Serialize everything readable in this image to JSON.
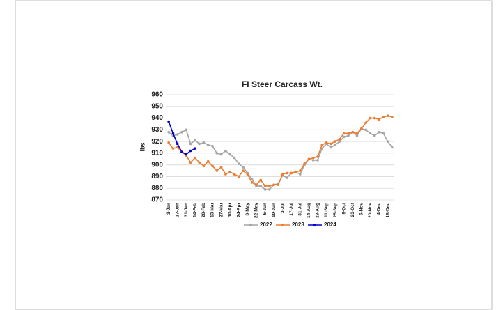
{
  "chart_data": {
    "type": "line",
    "title": "FI Steer Carcass Wt.",
    "y_label": "lbs",
    "categories": [
      "3-Jan",
      null,
      "17-Jan",
      null,
      "31-Jan",
      null,
      "14-Feb",
      null,
      "28-Feb",
      null,
      "13-Mar",
      null,
      "27-Mar",
      null,
      "10-Apr",
      null,
      "24-Apr",
      null,
      "8-May",
      null,
      "22-May",
      null,
      "5-Jun",
      null,
      "19-Jun",
      null,
      "3-Jul",
      null,
      "17-Jul",
      null,
      "31-Jul",
      null,
      "14-Aug",
      null,
      "28-Aug",
      null,
      "11-Sep",
      null,
      "25-Sep",
      null,
      "9-Oct",
      null,
      "23-Oct",
      null,
      "6-Nov",
      null,
      "20-Nov",
      null,
      "4-Dec",
      null,
      "18-Dec",
      null
    ],
    "series": [
      {
        "name": "2022",
        "color": "#a5a5a5",
        "values": [
          928,
          925,
          926,
          928,
          930,
          918,
          921,
          918,
          919,
          917,
          916,
          910,
          909,
          912,
          909,
          906,
          901,
          898,
          893,
          888,
          882,
          882,
          879,
          879,
          883,
          884,
          891,
          889,
          893,
          894,
          892,
          900,
          905,
          904,
          904,
          914,
          918,
          915,
          917,
          920,
          924,
          925,
          928,
          925,
          931,
          930,
          927,
          925,
          928,
          927,
          920,
          915
        ]
      },
      {
        "name": "2023",
        "color": "#ed7d31",
        "values": [
          919,
          914,
          915,
          911,
          908,
          902,
          906,
          902,
          899,
          903,
          899,
          895,
          898,
          892,
          894,
          892,
          890,
          895,
          892,
          885,
          883,
          887,
          882,
          882,
          883,
          883,
          892,
          893,
          893,
          894,
          895,
          901,
          905,
          906,
          907,
          917,
          919,
          918,
          920,
          922,
          927,
          927,
          928,
          927,
          931,
          936,
          940,
          940,
          939,
          941,
          942,
          941
        ]
      },
      {
        "name": "2024",
        "color": "#0000cc",
        "values": [
          937,
          927,
          918,
          911,
          909,
          912,
          914,
          null,
          null,
          null,
          null,
          null,
          null,
          null,
          null,
          null,
          null,
          null,
          null,
          null,
          null,
          null,
          null,
          null,
          null,
          null,
          null,
          null,
          null,
          null,
          null,
          null,
          null,
          null,
          null,
          null,
          null,
          null,
          null,
          null,
          null,
          null,
          null,
          null,
          null,
          null,
          null,
          null,
          null,
          null,
          null,
          null
        ]
      }
    ],
    "ylim": [
      870,
      960
    ],
    "yticks": [
      870,
      880,
      890,
      900,
      910,
      920,
      930,
      940,
      950,
      960
    ],
    "grid": true,
    "legend": "bottom"
  }
}
